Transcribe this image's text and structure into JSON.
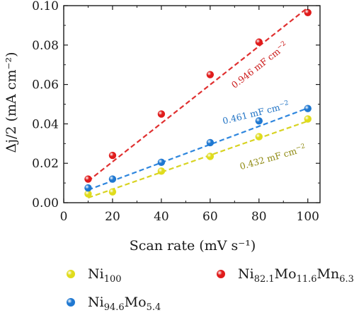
{
  "chart_data": {
    "type": "scatter",
    "xlabel": "Scan rate (mV s⁻¹)",
    "ylabel": "Δj/2 (mA cm⁻²)",
    "xlim": [
      0,
      105
    ],
    "ylim": [
      0,
      0.1
    ],
    "x_ticks": [
      0,
      20,
      40,
      60,
      80,
      100
    ],
    "x_tick_labels": [
      "0",
      "20",
      "40",
      "60",
      "80",
      "100"
    ],
    "y_ticks": [
      0.0,
      0.02,
      0.04,
      0.06,
      0.08,
      0.1
    ],
    "y_tick_labels": [
      "0.00",
      "0.02",
      "0.04",
      "0.06",
      "0.08",
      "0.10"
    ],
    "grid": false,
    "legend_position": "bottom",
    "series": [
      {
        "key": "ni100",
        "name": "Ni100",
        "legend_base": "Ni",
        "legend_parts": [
          {
            "sub": "100"
          }
        ],
        "color": "#e0dc1c",
        "line_color": "#d8d322",
        "x": [
          10,
          20,
          40,
          60,
          80,
          100
        ],
        "y": [
          0.0045,
          0.0055,
          0.016,
          0.0235,
          0.0335,
          0.0425
        ],
        "fit": {
          "x": [
            10,
            100
          ],
          "y": [
            0.0025,
            0.0414
          ]
        },
        "annotation": {
          "text": "0.432 mF cm",
          "sup": "−2",
          "color": "#8f8a12",
          "x": 86,
          "y": 0.0215,
          "angle": -16
        }
      },
      {
        "key": "nimo",
        "name": "Ni94.6Mo5.4",
        "legend_base": "Ni",
        "legend_parts": [
          {
            "sub": "94.6"
          },
          {
            "text": "Mo"
          },
          {
            "sub": "5.4"
          }
        ],
        "color": "#1f78d1",
        "line_color": "#2e86de",
        "x": [
          10,
          20,
          40,
          60,
          80,
          100
        ],
        "y": [
          0.0075,
          0.012,
          0.0205,
          0.0305,
          0.0415,
          0.0478
        ],
        "fit": {
          "x": [
            10,
            100
          ],
          "y": [
            0.0065,
            0.048
          ]
        },
        "annotation": {
          "text": "0.461 mF cm",
          "sup": "−2",
          "color": "#1f72c4",
          "x": 79,
          "y": 0.044,
          "angle": -14
        }
      },
      {
        "key": "nimomn",
        "name": "Ni82.1Mo11.6Mn6.3",
        "legend_base": "Ni",
        "legend_parts": [
          {
            "sub": "82.1"
          },
          {
            "text": "Mo"
          },
          {
            "sub": "11.6"
          },
          {
            "text": "Mn"
          },
          {
            "sub": "6.3"
          }
        ],
        "color": "#e01b1b",
        "line_color": "#e03030",
        "x": [
          10,
          20,
          40,
          60,
          80,
          100
        ],
        "y": [
          0.012,
          0.024,
          0.045,
          0.065,
          0.0815,
          0.0965
        ],
        "fit": {
          "x": [
            10,
            100
          ],
          "y": [
            0.011,
            0.099
          ]
        },
        "annotation": {
          "text": "0.946 mF cm",
          "sup": "−2",
          "color": "#cc1a1a",
          "x": 81,
          "y": 0.0685,
          "angle": -38
        }
      }
    ]
  }
}
